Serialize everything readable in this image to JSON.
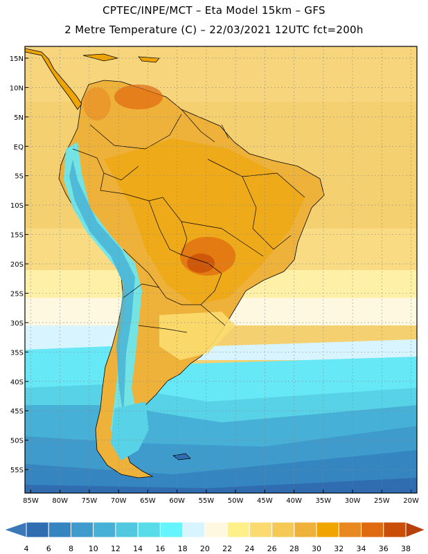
{
  "header": {
    "line1": "CPTEC/INPE/MCT –  Eta Model 15km – GFS",
    "line2": "2 Metre Temperature (C) – 22/03/2021 12UTC fct=200h"
  },
  "map": {
    "region": "South America",
    "lon_range": [
      -86,
      -19
    ],
    "lat_range": [
      17,
      -59
    ],
    "lat_ticks": [
      "15N",
      "10N",
      "5N",
      "EQ",
      "5S",
      "10S",
      "15S",
      "20S",
      "25S",
      "30S",
      "35S",
      "40S",
      "45S",
      "50S",
      "55S"
    ],
    "lat_values": [
      15,
      10,
      5,
      0,
      -5,
      -10,
      -15,
      -20,
      -25,
      -30,
      -35,
      -40,
      -45,
      -50,
      -55
    ],
    "lon_ticks": [
      "85W",
      "80W",
      "75W",
      "70W",
      "65W",
      "60W",
      "55W",
      "50W",
      "45W",
      "40W",
      "35W",
      "30W",
      "25W",
      "20W"
    ],
    "lon_values": [
      -85,
      -80,
      -75,
      -70,
      -65,
      -60,
      -55,
      -50,
      -45,
      -40,
      -35,
      -30,
      -25,
      -20
    ]
  },
  "colorbar": {
    "labels": [
      "4",
      "6",
      "8",
      "10",
      "12",
      "14",
      "16",
      "18",
      "20",
      "22",
      "24",
      "26",
      "28",
      "30",
      "32",
      "34",
      "36",
      "38"
    ],
    "low_color": "#3a78b8",
    "high_color": "#b8400a",
    "colors": [
      "#2f6cb0",
      "#3585c0",
      "#3f9bcc",
      "#46b0d6",
      "#50c8e0",
      "#58dcea",
      "#66f4ff",
      "#d8f4ff",
      "#fff8e0",
      "#fff08a",
      "#fbdb70",
      "#f5c955",
      "#eeb23a",
      "#f0a400",
      "#e88820",
      "#df6a10",
      "#c94f08"
    ]
  }
}
